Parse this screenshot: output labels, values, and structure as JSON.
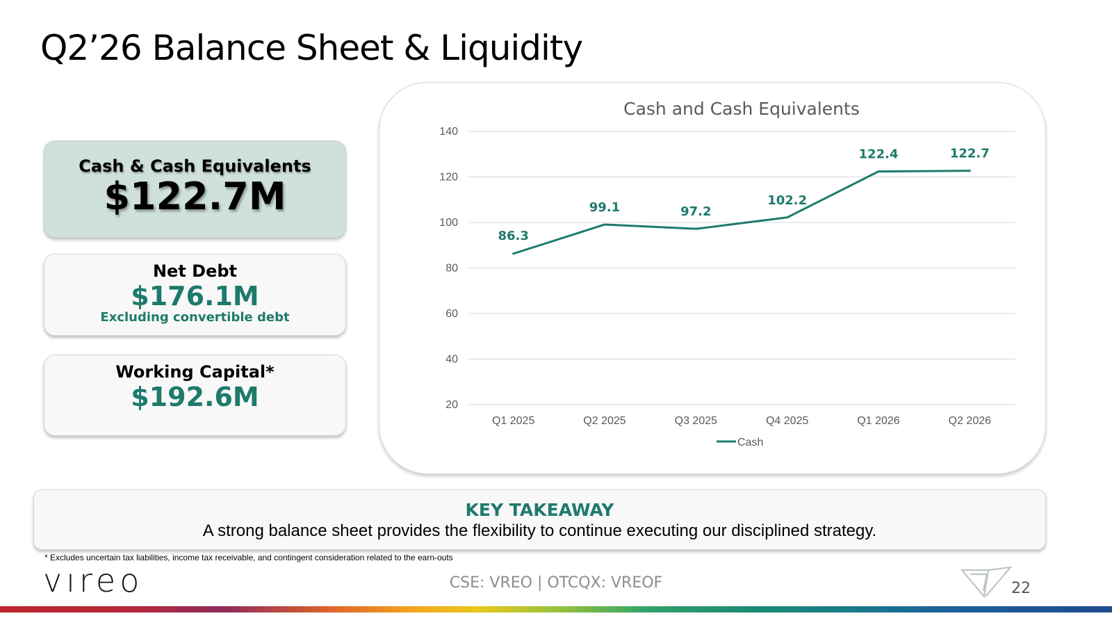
{
  "slide": {
    "title": "Q2’26 Balance Sheet & Liquidity",
    "page_number": "22"
  },
  "cards": {
    "cash": {
      "label": "Cash & Cash Equivalents",
      "value": "$122.7M"
    },
    "net_debt": {
      "label": "Net Debt",
      "value": "$176.1M",
      "note": "Excluding convertible debt"
    },
    "working_capital": {
      "label": "Working Capital*",
      "value": "$192.6M"
    }
  },
  "takeaway": {
    "heading": "KEY TAKEAWAY",
    "text": "A strong balance sheet provides the flexibility to continue executing our disciplined strategy."
  },
  "footnote": "* Excludes uncertain tax liabilities, income tax receivable, and contingent consideration related to the earn-outs",
  "footer": {
    "logo": "vıreo",
    "ticker": "CSE: VREO | OTCQX: VREOF"
  },
  "colors": {
    "accent": "#1e7a6c",
    "card_highlight": "#cfe0dd",
    "gridline": "#d9d9d9"
  },
  "chart_data": {
    "type": "line",
    "title": "Cash and Cash Equivalents",
    "categories": [
      "Q1 2025",
      "Q2 2025",
      "Q3 2025",
      "Q4 2025",
      "Q1 2026",
      "Q2 2026"
    ],
    "series": [
      {
        "name": "Cash",
        "values": [
          86.3,
          99.1,
          97.2,
          102.2,
          122.4,
          122.7
        ],
        "color": "#1e7a6c"
      }
    ],
    "data_labels": [
      "86.3",
      "99.1",
      "97.2",
      "102.2",
      "122.4",
      "122.7"
    ],
    "y_ticks": [
      20,
      40,
      60,
      80,
      100,
      120,
      140
    ],
    "ylim": [
      20,
      140
    ],
    "grid": true,
    "legend_position": "bottom"
  }
}
